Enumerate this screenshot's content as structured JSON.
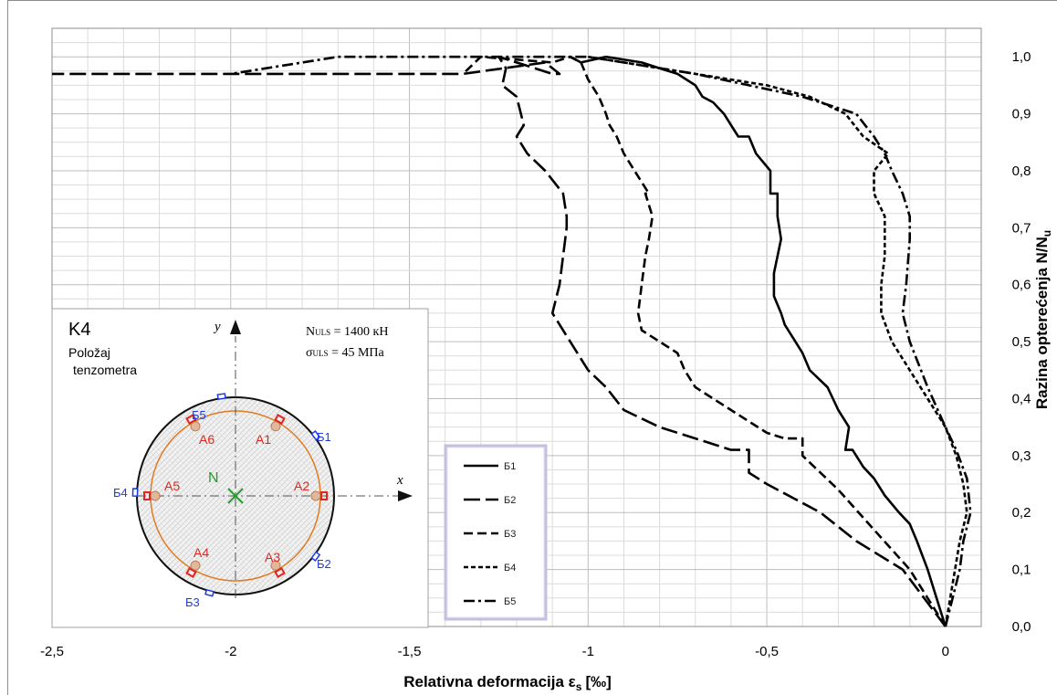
{
  "chart_data": {
    "type": "line",
    "title": "",
    "xlabel": "Relativna deformacija ε",
    "xlabel_sub": "s",
    "xlabel_unit": "[‰]",
    "ylabel": "Razina opterećenja  N/N",
    "ylabel_sub": "u",
    "xlim": [
      -2.5,
      0.1
    ],
    "ylim": [
      0,
      1.05
    ],
    "x_ticks": [
      -2.5,
      -2,
      -1.5,
      -1,
      -0.5,
      0
    ],
    "x_tick_labels": [
      "-2,5",
      "-2",
      "-1,5",
      "-1",
      "-0,5",
      "0"
    ],
    "y_ticks": [
      0,
      0.1,
      0.2,
      0.3,
      0.4,
      0.5,
      0.6,
      0.7,
      0.8,
      0.9,
      1.0
    ],
    "y_tick_labels": [
      "0,0",
      "0,1",
      "0,2",
      "0,3",
      "0,4",
      "0,5",
      "0,6",
      "0,7",
      "0,8",
      "0,9",
      "1,0"
    ],
    "grid": true,
    "legend_position": "center",
    "series": [
      {
        "name": "Б1",
        "dash": "solid",
        "x": [
          0,
          -0.03,
          -0.05,
          -0.08,
          -0.1,
          -0.13,
          -0.17,
          -0.2,
          -0.23,
          -0.26,
          -0.28,
          -0.27,
          -0.3,
          -0.33,
          -0.38,
          -0.4,
          -0.42,
          -0.45,
          -0.46,
          -0.48,
          -0.48,
          -0.47,
          -0.46,
          -0.47,
          -0.47,
          -0.49,
          -0.49,
          -0.53,
          -0.55,
          -0.58,
          -0.6,
          -0.62,
          -0.65,
          -0.68,
          -0.7,
          -0.75,
          -0.8,
          -0.85,
          -0.95,
          -1.02,
          -1.05
        ],
        "y": [
          0,
          0.06,
          0.1,
          0.15,
          0.18,
          0.2,
          0.23,
          0.26,
          0.28,
          0.31,
          0.31,
          0.35,
          0.38,
          0.42,
          0.45,
          0.48,
          0.5,
          0.53,
          0.55,
          0.58,
          0.62,
          0.65,
          0.68,
          0.72,
          0.76,
          0.76,
          0.8,
          0.83,
          0.86,
          0.86,
          0.88,
          0.9,
          0.92,
          0.93,
          0.95,
          0.97,
          0.98,
          0.99,
          1.0,
          0.99,
          1.0
        ]
      },
      {
        "name": "Б2",
        "dash": "long",
        "x": [
          0,
          -0.12,
          -0.25,
          -0.35,
          -0.5,
          -0.55,
          -0.55,
          -0.6,
          -0.7,
          -0.8,
          -0.9,
          -0.95,
          -1.0,
          -1.05,
          -1.1,
          -1.08,
          -1.07,
          -1.06,
          -1.06,
          -1.07,
          -1.07,
          -1.12,
          -1.17,
          -1.2,
          -1.18,
          -1.2,
          -1.24,
          -1.23,
          -1.25,
          -1.2,
          -1.1,
          -1.08,
          -1.12,
          -1.35,
          -1.5,
          -1.8,
          -2.0,
          -2.5
        ],
        "y": [
          0,
          0.1,
          0.15,
          0.2,
          0.25,
          0.27,
          0.31,
          0.31,
          0.33,
          0.35,
          0.38,
          0.42,
          0.45,
          0.5,
          0.55,
          0.6,
          0.65,
          0.7,
          0.72,
          0.76,
          0.76,
          0.8,
          0.83,
          0.86,
          0.88,
          0.93,
          0.95,
          0.98,
          1.0,
          0.99,
          0.97,
          0.97,
          0.99,
          0.97,
          0.97,
          0.97,
          0.97,
          0.97
        ]
      },
      {
        "name": "Б3",
        "dash": "medium",
        "x": [
          0,
          -0.1,
          -0.2,
          -0.3,
          -0.4,
          -0.4,
          -0.45,
          -0.5,
          -0.6,
          -0.7,
          -0.73,
          -0.75,
          -0.8,
          -0.85,
          -0.86,
          -0.85,
          -0.84,
          -0.83,
          -0.82,
          -0.84,
          -0.83,
          -0.87,
          -0.9,
          -0.92,
          -0.94,
          -0.95,
          -0.97,
          -1.0,
          -1.02,
          -1.05,
          -1.1,
          -1.3,
          -1.35
        ],
        "y": [
          0,
          0.1,
          0.17,
          0.24,
          0.3,
          0.33,
          0.33,
          0.34,
          0.38,
          0.42,
          0.45,
          0.48,
          0.5,
          0.52,
          0.55,
          0.6,
          0.65,
          0.68,
          0.72,
          0.76,
          0.76,
          0.8,
          0.83,
          0.86,
          0.88,
          0.9,
          0.93,
          0.96,
          0.99,
          1.0,
          0.99,
          1.0,
          0.97
        ]
      },
      {
        "name": "Б4",
        "dash": "short",
        "x": [
          0,
          0.04,
          0.06,
          0.05,
          0.03,
          0.0,
          -0.05,
          -0.1,
          -0.15,
          -0.18,
          -0.18,
          -0.17,
          -0.17,
          -0.2,
          -0.2,
          -0.16,
          -0.23,
          -0.28,
          -0.38,
          -0.5,
          -0.7,
          -0.9,
          -1.0
        ],
        "y": [
          0,
          0.15,
          0.2,
          0.25,
          0.3,
          0.35,
          0.4,
          0.45,
          0.5,
          0.55,
          0.6,
          0.65,
          0.72,
          0.76,
          0.8,
          0.83,
          0.86,
          0.9,
          0.93,
          0.95,
          0.97,
          0.99,
          1.0
        ]
      },
      {
        "name": "Б5",
        "dash": "dashdot",
        "x": [
          0,
          0.04,
          0.05,
          0.07,
          0.06,
          0.03,
          0.0,
          -0.05,
          -0.1,
          -0.12,
          -0.11,
          -0.1,
          -0.1,
          -0.12,
          -0.15,
          -0.17,
          -0.2,
          -0.25,
          -0.4,
          -0.7,
          -1.0,
          -1.3,
          -1.7,
          -2.0
        ],
        "y": [
          0,
          0.1,
          0.15,
          0.2,
          0.26,
          0.31,
          0.35,
          0.42,
          0.5,
          0.55,
          0.6,
          0.68,
          0.72,
          0.76,
          0.8,
          0.83,
          0.86,
          0.9,
          0.93,
          0.97,
          1.0,
          1.0,
          1.0,
          0.97
        ]
      }
    ]
  },
  "inset": {
    "title": "K4",
    "subtitle_line1": "Položaj",
    "subtitle_line2": "tenzometra",
    "nuls_label": "N",
    "nuls_sub": "ULS",
    "nuls_value": " = 1400 кН",
    "suls_label": "σ",
    "suls_sub": "ULS",
    "suls_value": " = 45 МПа",
    "axis_x": "x",
    "axis_y": "y",
    "center_label": "N",
    "rebar_labels": [
      "A1",
      "A2",
      "A3",
      "A4",
      "A5",
      "A6"
    ],
    "gauge_labels": [
      "Б1",
      "Б2",
      "Б3",
      "Б4",
      "Б5"
    ],
    "colors": {
      "rebar": "#e0261e",
      "gauge": "#1c3ce0",
      "ring": "#e07a1e",
      "center": "#1e9e2a"
    }
  }
}
